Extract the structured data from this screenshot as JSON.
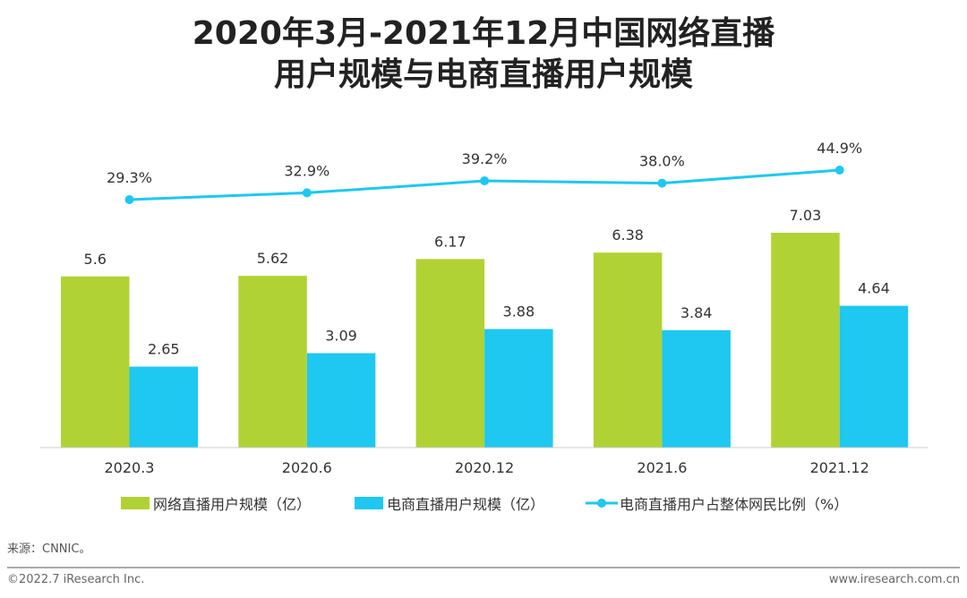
{
  "title_line1": "2020年3月-2021年12月中国网络直播",
  "title_line2": "用户规模与电商直播用户规模",
  "source": "来源：CNNIC。",
  "footer_left": "©2022.7 iResearch Inc.",
  "footer_right": "www.iresearch.com.cn",
  "chart_data": {
    "type": "bar+line",
    "categories": [
      "2020.3",
      "2020.6",
      "2020.12",
      "2021.6",
      "2021.12"
    ],
    "series": [
      {
        "name": "网络直播用户规模（亿）",
        "type": "bar",
        "color": "#b1d234",
        "values": [
          5.6,
          5.62,
          6.17,
          6.38,
          7.03
        ],
        "labels": [
          "5.6",
          "5.62",
          "6.17",
          "6.38",
          "7.03"
        ]
      },
      {
        "name": "电商直播用户规模（亿）",
        "type": "bar",
        "color": "#1ec8f0",
        "values": [
          2.65,
          3.09,
          3.88,
          3.84,
          4.64
        ],
        "labels": [
          "2.65",
          "3.09",
          "3.88",
          "3.84",
          "4.64"
        ]
      },
      {
        "name": "电商直播用户占整体网民比例（%）",
        "type": "line",
        "color": "#1ec8f0",
        "values": [
          29.3,
          32.9,
          39.2,
          38.0,
          44.9
        ],
        "labels": [
          "29.3%",
          "32.9%",
          "39.2%",
          "38.0%",
          "44.9%"
        ]
      }
    ],
    "legend": "bottom",
    "grid": false
  }
}
